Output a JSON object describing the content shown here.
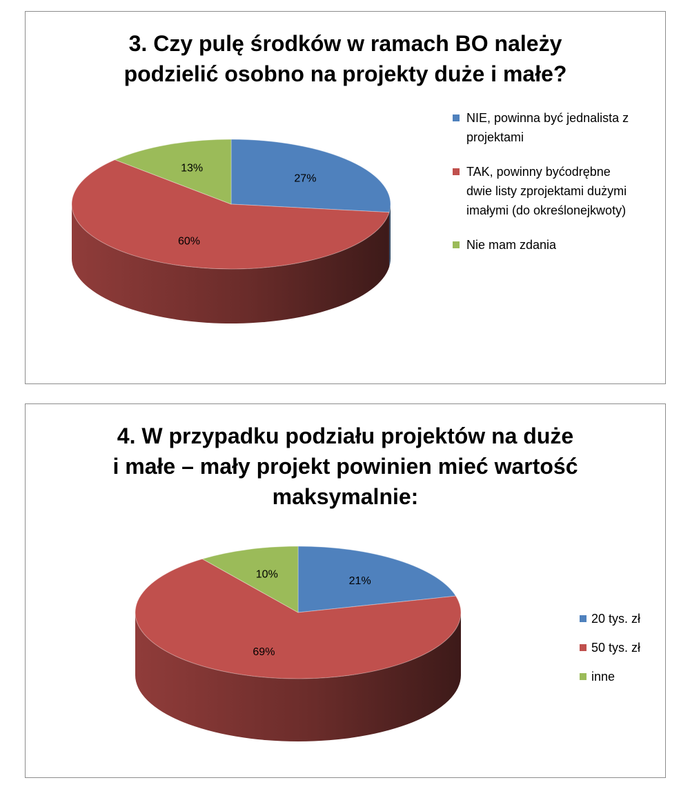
{
  "chart_data": [
    {
      "type": "pie",
      "title_lines": [
        "3. Czy pulę środków w ramach BO należy",
        "podzielić osobno na projekty duże i małe?"
      ],
      "slices": [
        {
          "label": "NIE, powinna być jednalista z projektami",
          "value": 27,
          "display": "27%",
          "color": "#4F81BD"
        },
        {
          "label": "TAK, powinny byćodrębne dwie listy zprojektami dużymi imałymi (do określonejkwoty)",
          "value": 60,
          "display": "60%",
          "color": "#C0504D"
        },
        {
          "label": "Nie mam zdania",
          "value": 13,
          "display": "13%",
          "color": "#9BBB59"
        }
      ],
      "legend_lines": [
        [
          "NIE, powinna być jednalista z",
          "projektami"
        ],
        [
          "TAK, powinny byćodrębne",
          "dwie listy zprojektami dużymi",
          "imałymi (do określonejkwoty)"
        ],
        [
          "Nie mam zdania"
        ]
      ],
      "legend_position": "right"
    },
    {
      "type": "pie",
      "title_lines": [
        "4. W przypadku podziału projektów na duże",
        "i małe – mały projekt powinien mieć wartość",
        "maksymalnie:"
      ],
      "slices": [
        {
          "label": "20 tys. zł",
          "value": 21,
          "display": "21%",
          "color": "#4F81BD"
        },
        {
          "label": "50 tys. zł",
          "value": 69,
          "display": "69%",
          "color": "#C0504D"
        },
        {
          "label": "inne",
          "value": 10,
          "display": "10%",
          "color": "#9BBB59"
        }
      ],
      "legend_lines": [
        [
          "20 tys. zł"
        ],
        [
          "50 tys. zł"
        ],
        [
          "inne"
        ]
      ],
      "legend_position": "right"
    }
  ]
}
